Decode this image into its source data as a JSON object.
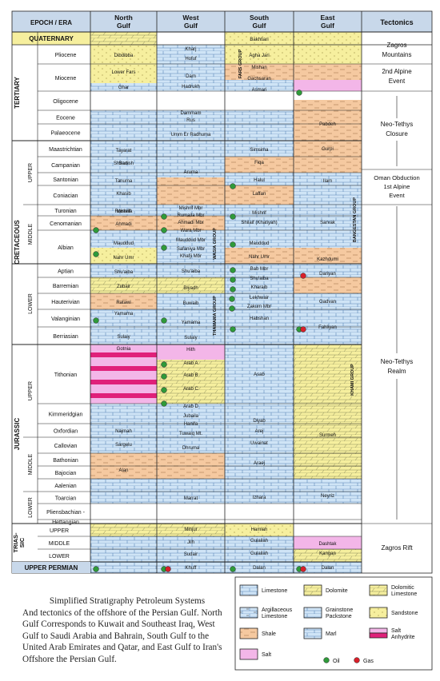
{
  "headers": {
    "epoch_era": "EPOCH / ERA",
    "north_gulf": [
      "North",
      "Gulf"
    ],
    "west_gulf": [
      "West",
      "Gulf"
    ],
    "south_gulf": [
      "South",
      "Gulf"
    ],
    "east_gulf": [
      "East",
      "Gulf"
    ],
    "tectonics": "Tectonics"
  },
  "eras": [
    "QUATERNARY",
    "TERTIARY",
    "CRETACEOUS",
    "JURASSIC",
    "TRIAS-",
    "SIC",
    "UPPER PERMIAN"
  ],
  "subdivisions": [
    "UPPER",
    "MIDDLE",
    "LOWER",
    "UPPER",
    "MIDDLE",
    "LOWER"
  ],
  "stages": [
    "Pliocene",
    "Miocene",
    "Oligocene",
    "Eocene",
    "Palaeocene",
    "Maastrichtian",
    "Campanian",
    "Santonian",
    "Coniacian",
    "Turonian",
    "Cenomanian",
    "Albian",
    "Aptian",
    "Barremian",
    "Hauterivian",
    "Valanginian",
    "Berriasian",
    "Tithonian",
    "Kimmeridgian",
    "Oxfordian",
    "Callovian",
    "Bathonian",
    "Bajocian",
    "Aalenian",
    "Toarcian",
    "Pliensbachian -",
    "Hettangian",
    "UPPER",
    "MIDDLE",
    "LOWER"
  ],
  "formations": {
    "north": [
      "Dibdibba",
      "Lower Fars",
      "Ghar",
      "Tayarat",
      "Shiranish",
      "Sadi",
      "Tanuma",
      "Khasib",
      "Mishrif",
      "Rumaila",
      "Ahmadi",
      "Mauddud",
      "Nahr Umr",
      "Shu'aiba",
      "Zubair",
      "Ratawi",
      "Yamama",
      "Sulaiy",
      "Gotnia",
      "Najmah",
      "Sargelu",
      "Alan",
      "Mus",
      "Adaiyah",
      "Butmah",
      "Baluti",
      "Kurra Chine",
      "Geli Khana",
      "Beduh",
      "Chia Zairi"
    ],
    "west": [
      "Kharj",
      "Hofuf",
      "Dam",
      "Hadrukh",
      "Dammam",
      "Rus",
      "Umm Er Radhuma",
      "Aruma",
      "Mishrif Mbr",
      "Rumaila Mbr",
      "Ahmadi Mbr",
      "Wara Mbr",
      "Mauddud Mbr",
      "Safaniya Mbr",
      "Khafji Mbr",
      "Shu'aiba",
      "Biyadh",
      "Buwaib",
      "Yamama",
      "Sulaiy",
      "Hith",
      "Arab A",
      "Arab B",
      "Arab C",
      "Arab D",
      "Jubaila",
      "Hanifa",
      "Tuwaiq Mt.",
      "Dhruma",
      "Marrat",
      "Minjur",
      "Jilh",
      "Sudair",
      "Khuff"
    ],
    "south": [
      "Bakhtiari",
      "Agha Jari",
      "Mishan",
      "Gachsaran",
      "Asmari",
      "Pabdeh",
      "Gurpi",
      "Simsima",
      "Fiqa",
      "Halul",
      "Ilam",
      "Laffan",
      "Mishrif",
      "Shilaif (Khatiyah)",
      "Sarvak",
      "Mauddud",
      "Nahr Umr",
      "Kazhdumi",
      "Bab Mbr",
      "Shu'aiba",
      "Kharaib",
      "Lekhwair",
      "Zakum Mbr",
      "Habshan",
      "Dariyan",
      "Gadvan",
      "Fahliyan",
      "Asab",
      "Diyab",
      "Arej",
      "Uwainat",
      "Araej",
      "Surmeh",
      "Izhara",
      "Neyriz",
      "Hamlah",
      "Gulailah",
      "Dashtak",
      "Kangan",
      "Dalan"
    ]
  },
  "tectonics": [
    "Zagros Mountains",
    "2nd Alpine Event",
    "Neo-Tethys Closure",
    "Oman Obduction 1st Alpine Event",
    "Neo-Tethys Realm",
    "Zagros Rift"
  ],
  "groups": [
    "FARS GROUP",
    "WASIA GROUP",
    "THAMAMA GROUP",
    "BANGESTAN GROUP",
    "KHAMI GROUP"
  ],
  "caption": {
    "line1": "Simplified Stratigraphy Petroleum Systems",
    "rest": "And tectonics of the offshore of the Persian Gulf. North Gulf Corresponds to Kuwait and Southeast Iraq, West Gulf to Saudi Arabia and Bahrain, South Gulf to the United Arab Emirates and Qatar, and East Gulf to Iran's Offshore the Persian Gulf."
  },
  "legend": {
    "items": [
      "Limestone",
      "Dolomite",
      "Dolomitic Limestone",
      "Argillaceous Limestone",
      "Grainstone Packstone",
      "Sandstone",
      "Shale",
      "Marl",
      "Salt Anhydrite",
      "Salt",
      "Oil",
      "Gas"
    ]
  },
  "colors": {
    "limestone": "#cfe4f6",
    "dolomite": "#f6ef9e",
    "shale": "#f5c9a0",
    "salt": "#f3b6e8",
    "anhydrite": "#e0207a",
    "oil": "#2f9a3a",
    "gas": "#d8202a",
    "header": "#c8d8ea",
    "grid": "#222222"
  }
}
